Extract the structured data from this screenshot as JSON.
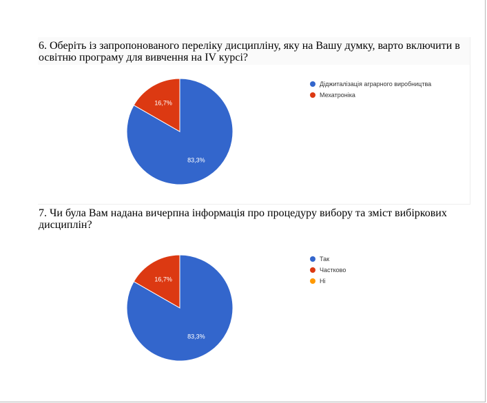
{
  "questions": [
    {
      "text": "6. Оберіть із запропонованого переліку дисципліну, яку на Вашу думку, варто включити в освітню програму для вивчення на IV курсі?"
    },
    {
      "text": "7. Чи була Вам надана вичерпна інформація про процедуру вибору та зміст вибіркових дисциплін?"
    }
  ],
  "chart_data": [
    {
      "type": "pie",
      "categories": [
        "Діджиталізація аграрного виробництва",
        "Мехатроніка"
      ],
      "values": [
        83.3,
        16.7
      ],
      "labels": [
        "83,3%",
        "16,7%"
      ],
      "colors": [
        "#3366cc",
        "#dc3912"
      ],
      "legend_position": "right"
    },
    {
      "type": "pie",
      "categories": [
        "Так",
        "Частково",
        "Ні"
      ],
      "values": [
        83.3,
        16.7,
        0
      ],
      "labels": [
        "83,3%",
        "16,7%",
        ""
      ],
      "colors": [
        "#3366cc",
        "#dc3912",
        "#ff9900"
      ],
      "legend_position": "right"
    }
  ]
}
